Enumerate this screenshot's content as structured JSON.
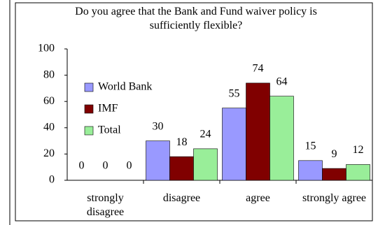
{
  "chart_data": {
    "type": "bar",
    "title": "Do you agree that the Bank and Fund waiver policy is sufficiently flexible?",
    "categories": [
      "strongly disagree",
      "disagree",
      "agree",
      "strongly agree"
    ],
    "series": [
      {
        "name": "World Bank",
        "color": "#9999ff",
        "values": [
          0,
          30,
          55,
          15
        ]
      },
      {
        "name": "IMF",
        "color": "#800000",
        "values": [
          0,
          18,
          74,
          9
        ]
      },
      {
        "name": "Total",
        "color": "#99ee99",
        "values": [
          0,
          24,
          64,
          12
        ]
      }
    ],
    "ylim": [
      0,
      100
    ],
    "yticks": [
      0,
      20,
      40,
      60,
      80,
      100
    ],
    "grid": false,
    "legend": "left"
  }
}
